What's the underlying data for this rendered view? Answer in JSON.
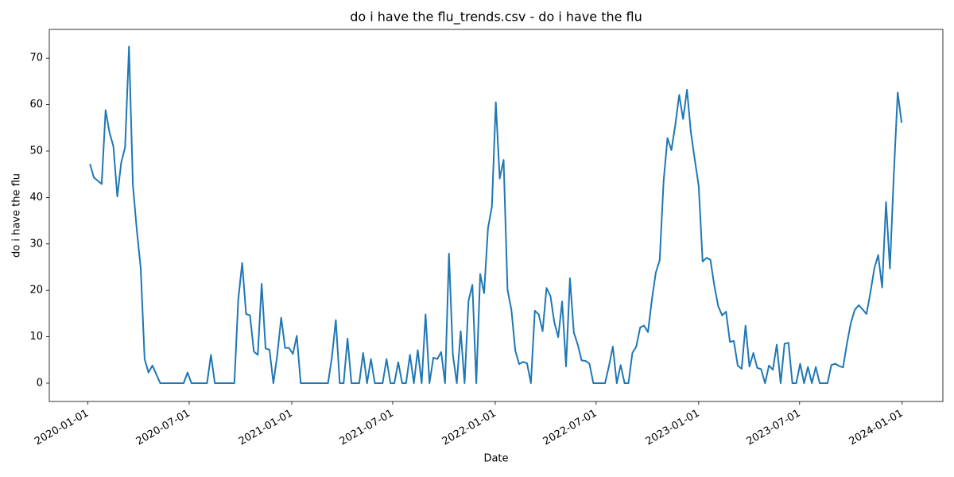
{
  "chart_data": {
    "type": "line",
    "title": "do i have the flu_trends.csv - do i have the flu",
    "x_label": "Date",
    "y_label": "do i have the flu",
    "x": [
      "2020-01-05",
      "2020-01-12",
      "2020-01-26",
      "2020-02-02",
      "2020-02-09",
      "2020-02-16",
      "2020-02-23",
      "2020-03-01",
      "2020-03-08",
      "2020-03-15",
      "2020-03-22",
      "2020-03-29",
      "2020-04-05",
      "2020-04-12",
      "2020-04-19",
      "2020-04-26",
      "2020-05-10",
      "2020-06-21",
      "2020-06-28",
      "2020-07-05",
      "2020-08-02",
      "2020-08-09",
      "2020-08-16",
      "2020-09-20",
      "2020-09-27",
      "2020-10-04",
      "2020-10-11",
      "2020-10-18",
      "2020-10-25",
      "2020-11-01",
      "2020-11-08",
      "2020-11-15",
      "2020-11-22",
      "2020-11-29",
      "2020-12-06",
      "2020-12-13",
      "2020-12-20",
      "2020-12-27",
      "2021-01-03",
      "2021-01-10",
      "2021-01-17",
      "2021-03-07",
      "2021-03-14",
      "2021-03-21",
      "2021-03-28",
      "2021-04-04",
      "2021-04-11",
      "2021-04-18",
      "2021-05-02",
      "2021-05-09",
      "2021-05-16",
      "2021-05-23",
      "2021-05-30",
      "2021-06-13",
      "2021-06-20",
      "2021-06-27",
      "2021-07-04",
      "2021-07-11",
      "2021-07-18",
      "2021-07-25",
      "2021-08-01",
      "2021-08-08",
      "2021-08-15",
      "2021-08-22",
      "2021-08-29",
      "2021-09-05",
      "2021-09-12",
      "2021-09-19",
      "2021-09-26",
      "2021-10-03",
      "2021-10-10",
      "2021-10-17",
      "2021-10-24",
      "2021-10-31",
      "2021-11-07",
      "2021-11-14",
      "2021-11-21",
      "2021-11-28",
      "2021-12-05",
      "2021-12-12",
      "2021-12-19",
      "2021-12-26",
      "2022-01-02",
      "2022-01-09",
      "2022-01-16",
      "2022-01-23",
      "2022-01-30",
      "2022-02-06",
      "2022-02-13",
      "2022-02-20",
      "2022-02-27",
      "2022-03-06",
      "2022-03-13",
      "2022-03-20",
      "2022-03-27",
      "2022-04-03",
      "2022-04-10",
      "2022-04-17",
      "2022-04-24",
      "2022-05-01",
      "2022-05-08",
      "2022-05-15",
      "2022-05-22",
      "2022-05-29",
      "2022-06-05",
      "2022-06-12",
      "2022-06-19",
      "2022-06-26",
      "2022-07-17",
      "2022-07-24",
      "2022-07-31",
      "2022-08-07",
      "2022-08-14",
      "2022-08-21",
      "2022-08-28",
      "2022-09-04",
      "2022-09-11",
      "2022-09-18",
      "2022-09-25",
      "2022-10-02",
      "2022-10-09",
      "2022-10-16",
      "2022-10-23",
      "2022-10-30",
      "2022-11-06",
      "2022-11-13",
      "2022-11-20",
      "2022-11-27",
      "2022-12-04",
      "2022-12-11",
      "2022-12-18",
      "2022-12-25",
      "2023-01-01",
      "2023-01-08",
      "2023-01-15",
      "2023-01-22",
      "2023-01-29",
      "2023-02-05",
      "2023-02-12",
      "2023-02-19",
      "2023-02-26",
      "2023-03-05",
      "2023-03-12",
      "2023-03-19",
      "2023-03-26",
      "2023-04-02",
      "2023-04-09",
      "2023-04-16",
      "2023-04-23",
      "2023-04-30",
      "2023-05-07",
      "2023-05-14",
      "2023-05-21",
      "2023-05-28",
      "2023-06-04",
      "2023-06-11",
      "2023-06-18",
      "2023-06-25",
      "2023-07-02",
      "2023-07-09",
      "2023-07-16",
      "2023-07-23",
      "2023-07-30",
      "2023-08-06",
      "2023-08-20",
      "2023-08-27",
      "2023-09-03",
      "2023-09-10",
      "2023-09-17",
      "2023-09-24",
      "2023-10-01",
      "2023-10-08",
      "2023-10-15",
      "2023-10-22",
      "2023-10-29",
      "2023-11-05",
      "2023-11-12",
      "2023-11-19",
      "2023-11-26",
      "2023-12-03",
      "2023-12-10",
      "2023-12-17",
      "2023-12-24",
      "2023-12-31"
    ],
    "values": [
      47.2,
      44.3,
      42.9,
      58.8,
      54,
      51,
      40.2,
      47.5,
      50.8,
      72.5,
      42.6,
      33,
      24.8,
      5.2,
      2.3,
      3.8,
      0,
      0,
      2.3,
      0,
      0,
      6.1,
      0,
      0,
      18,
      25.9,
      14.9,
      14.6,
      6.8,
      6.1,
      21.4,
      7.5,
      7.2,
      0,
      6.1,
      14.1,
      7.6,
      7.6,
      6.3,
      10.2,
      0,
      0,
      5.6,
      13.6,
      0,
      0,
      9.6,
      0,
      0,
      6.5,
      0,
      5.2,
      0,
      0,
      5.2,
      0,
      0,
      4.5,
      0,
      0,
      6.1,
      0,
      7.1,
      0,
      14.8,
      0,
      5.5,
      5.2,
      6.7,
      0,
      27.9,
      6.1,
      0,
      11.2,
      0,
      17.7,
      21.2,
      0,
      23.5,
      19.4,
      33.4,
      38,
      60.5,
      44.1,
      48.1,
      20.1,
      15.8,
      7,
      4.1,
      4.6,
      4.3,
      0,
      15.6,
      14.8,
      11.2,
      20.5,
      18.8,
      13.1,
      9.9,
      17.6,
      3.6,
      22.6,
      10.9,
      8.3,
      4.9,
      4.8,
      4.2,
      0,
      0,
      3.7,
      7.9,
      0,
      3.9,
      0,
      0,
      6.5,
      7.9,
      12,
      12.4,
      11,
      18,
      23.8,
      26.5,
      43.5,
      52.8,
      50.2,
      55.6,
      62.1,
      56.9,
      63.2,
      54,
      48.1,
      42.5,
      26.2,
      27,
      26.6,
      21,
      16.6,
      14.6,
      15.4,
      8.9,
      9.1,
      3.8,
      3.1,
      12.4,
      3.6,
      6.5,
      3.3,
      3,
      0,
      3.8,
      2.9,
      8.3,
      0,
      8.5,
      8.7,
      0,
      0,
      4.2,
      0,
      3.5,
      0,
      3.5,
      0,
      0,
      3.9,
      4.2,
      3.7,
      3.4,
      8.6,
      13,
      15.8,
      16.8,
      15.9,
      14.9,
      19.5,
      24.7,
      27.6,
      20.6,
      39,
      24.7,
      45,
      62.6,
      56.1
    ],
    "color": "#1f77b4",
    "xlim": [
      "2019-10-24",
      "2024-03-14"
    ],
    "xticks": [
      "2020-01-01",
      "2020-07-01",
      "2021-01-01",
      "2021-07-01",
      "2022-01-01",
      "2022-07-01",
      "2023-01-01",
      "2023-07-01",
      "2024-01-01"
    ],
    "ylim": [
      -3.94,
      76.2
    ],
    "yticks": [
      0,
      10,
      20,
      30,
      40,
      50,
      60,
      70
    ]
  }
}
